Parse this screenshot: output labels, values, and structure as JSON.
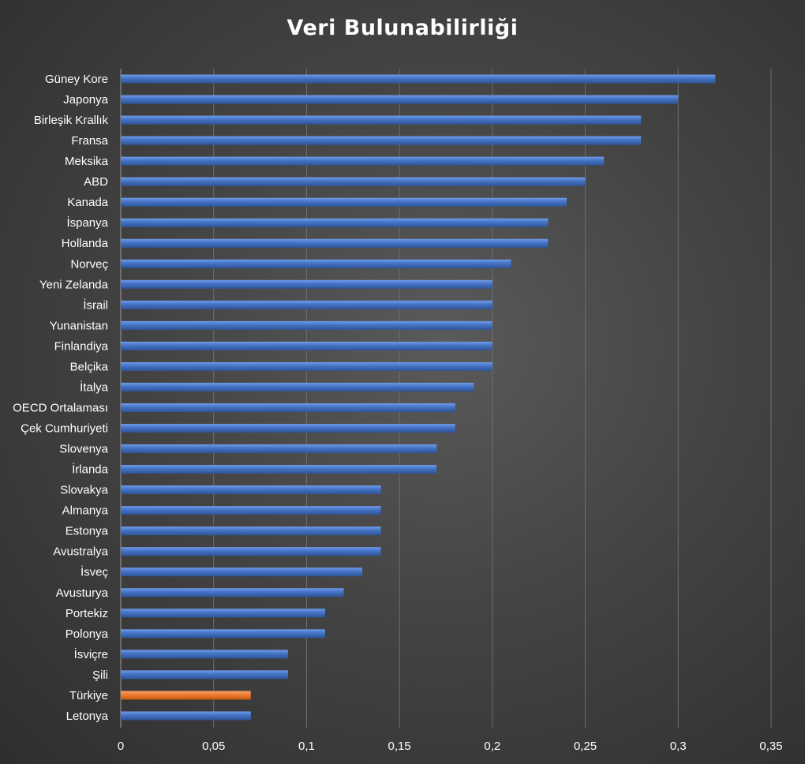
{
  "chart_data": {
    "type": "bar",
    "orientation": "horizontal",
    "title": "Veri Bulunabilirliği",
    "categories": [
      "Güney Kore",
      "Japonya",
      "Birleşik Krallık",
      "Fransa",
      "Meksika",
      "ABD",
      "Kanada",
      "İspanya",
      "Hollanda",
      "Norveç",
      "Yeni Zelanda",
      "İsrail",
      "Yunanistan",
      "Finlandiya",
      "Belçika",
      "İtalya",
      "OECD Ortalaması",
      "Çek Cumhuriyeti",
      "Slovenya",
      "İrlanda",
      "Slovakya",
      "Almanya",
      "Estonya",
      "Avustralya",
      "İsveç",
      "Avusturya",
      "Portekiz",
      "Polonya",
      "İsviçre",
      "Şili",
      "Türkiye",
      "Letonya"
    ],
    "values": [
      0.32,
      0.3,
      0.28,
      0.28,
      0.26,
      0.25,
      0.24,
      0.23,
      0.23,
      0.21,
      0.2,
      0.2,
      0.2,
      0.2,
      0.2,
      0.19,
      0.18,
      0.18,
      0.17,
      0.17,
      0.14,
      0.14,
      0.14,
      0.14,
      0.13,
      0.12,
      0.11,
      0.11,
      0.09,
      0.09,
      0.07,
      0.07
    ],
    "highlight_category": "Türkiye",
    "xlim": [
      0,
      0.35
    ],
    "x_ticks": [
      0,
      0.05,
      0.1,
      0.15,
      0.2,
      0.25,
      0.3,
      0.35
    ],
    "x_tick_labels": [
      "0",
      "0,05",
      "0,1",
      "0,15",
      "0,2",
      "0,25",
      "0,3",
      "0,35"
    ],
    "grid": "vertical",
    "legend": "none",
    "colors": {
      "bar": "#4472c4",
      "highlight": "#ed7d31",
      "grid": "#6e6e6e",
      "text": "#ffffff"
    }
  }
}
